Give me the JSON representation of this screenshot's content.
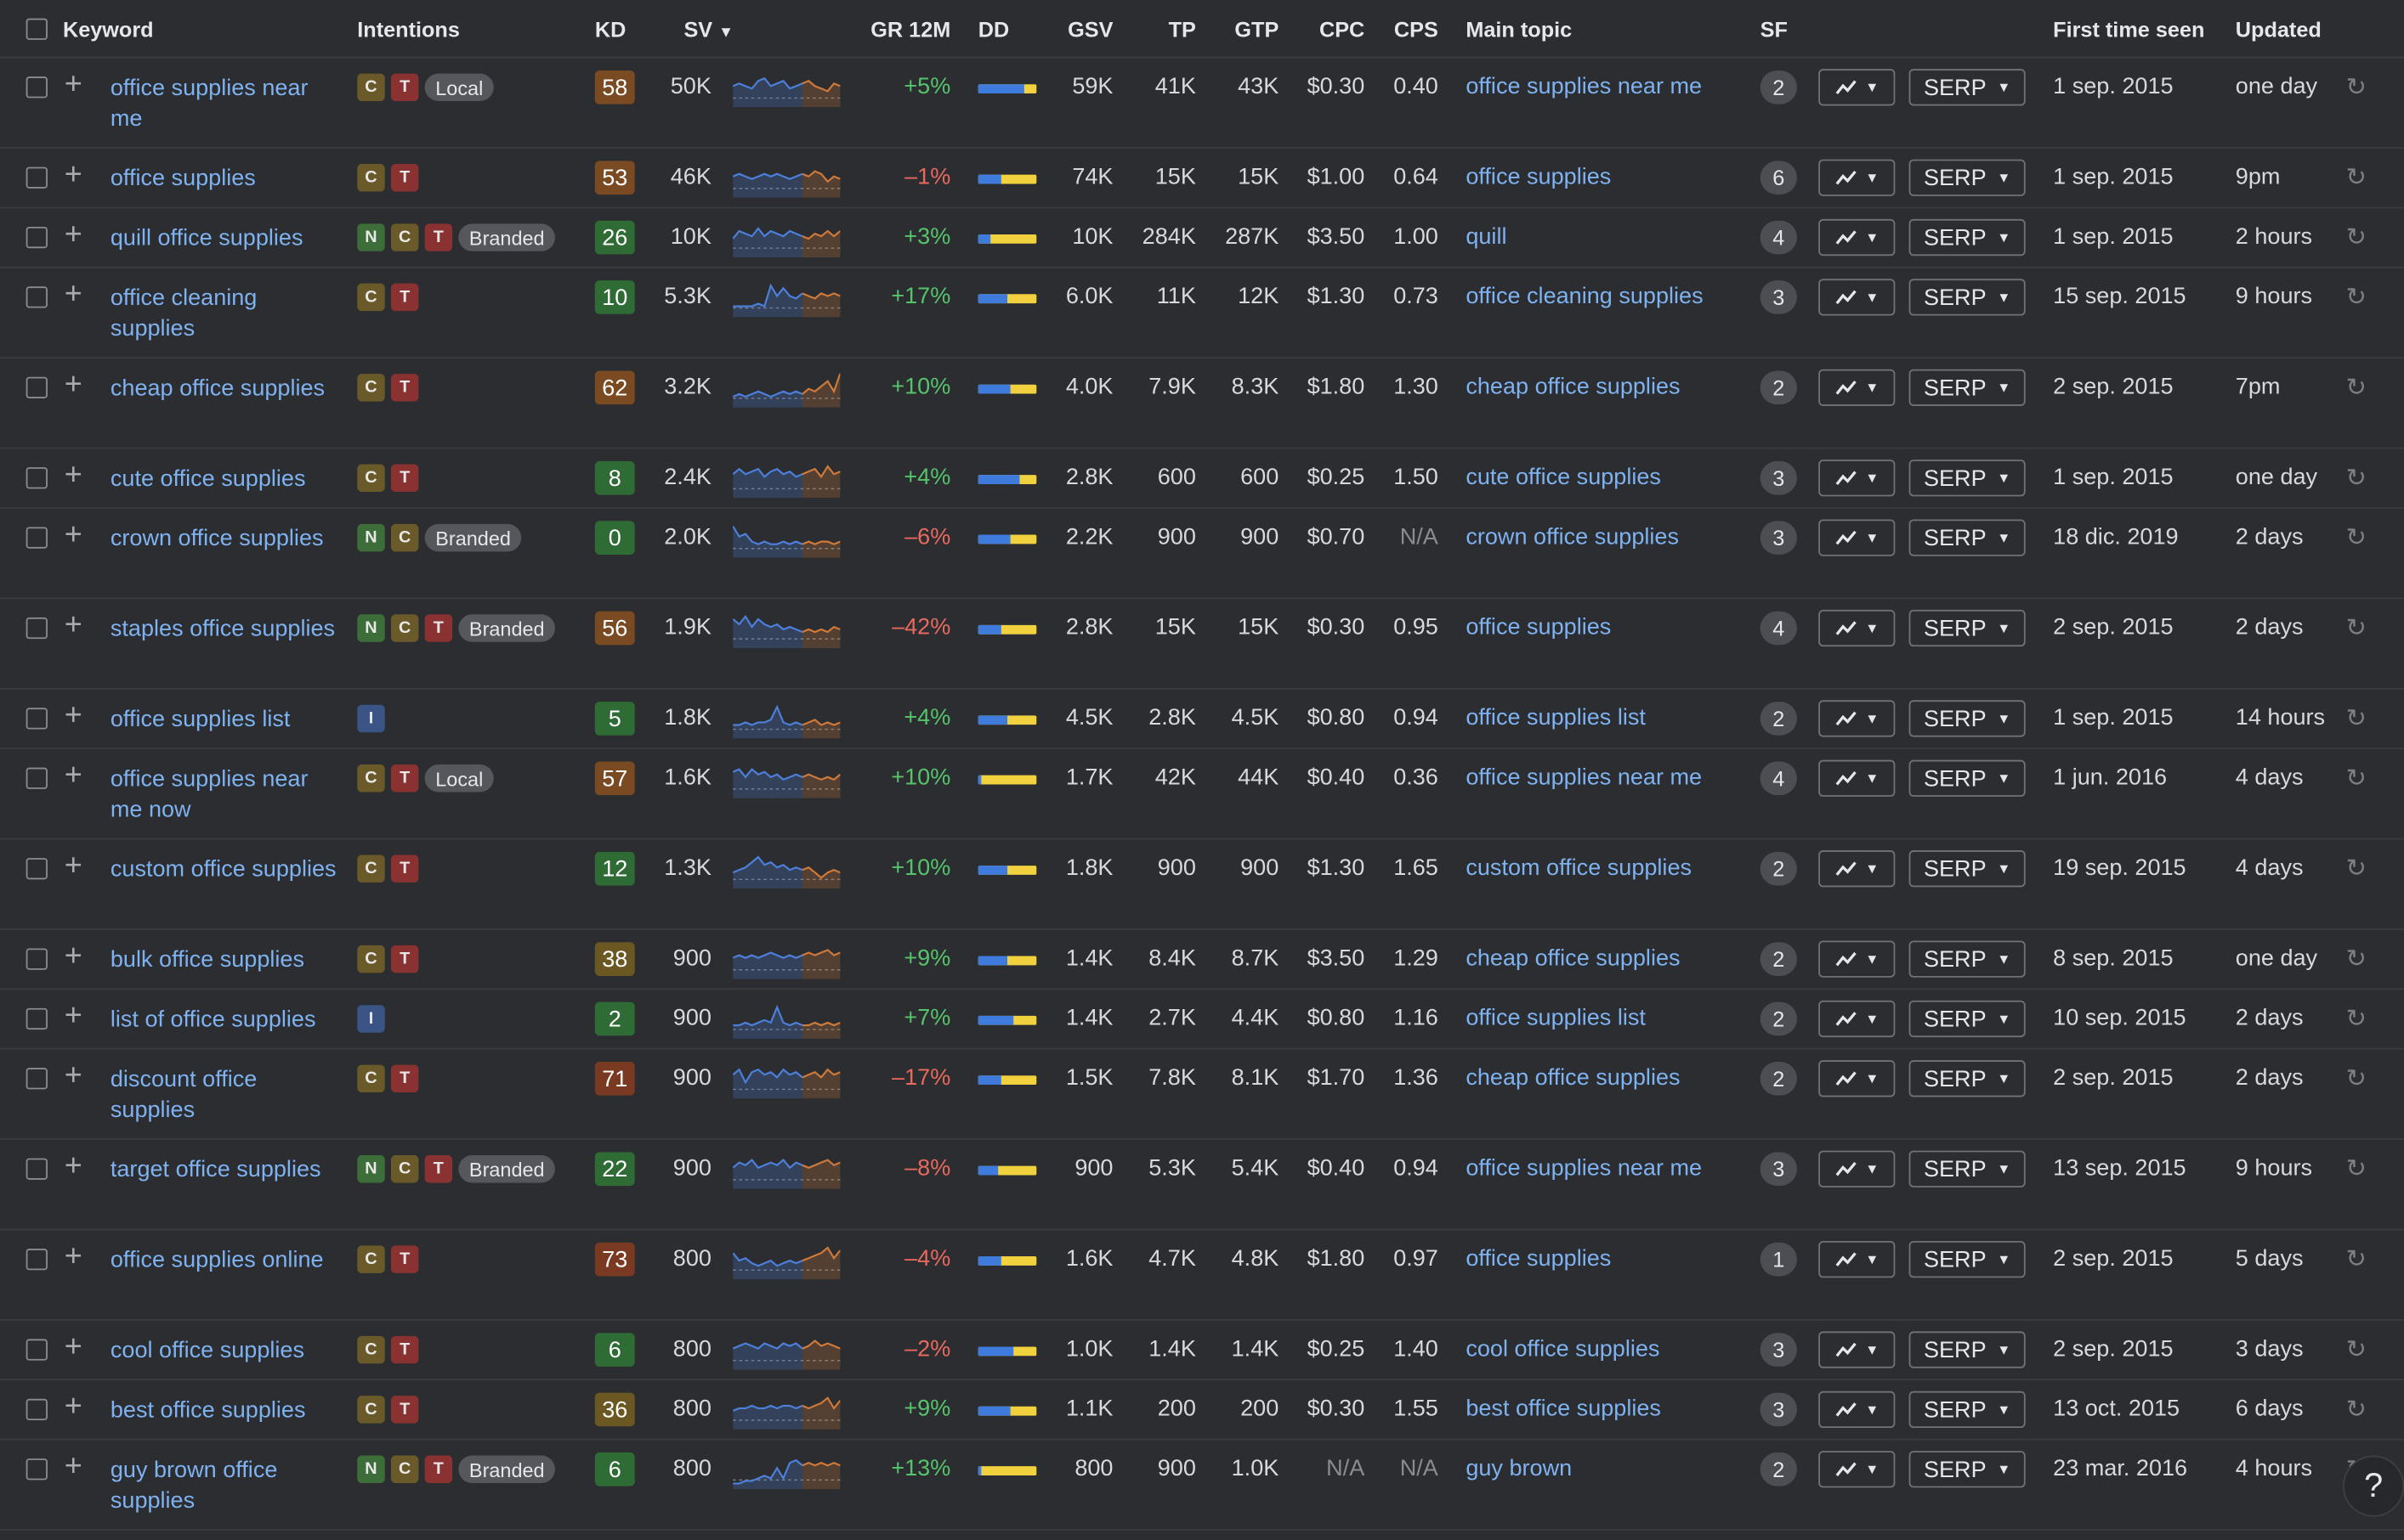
{
  "header": {
    "keyword": "Keyword",
    "intentions": "Intentions",
    "kd": "KD",
    "sv": "SV",
    "gr12m": "GR 12M",
    "dd": "DD",
    "gsv": "GSV",
    "tp": "TP",
    "gtp": "GTP",
    "cpc": "CPC",
    "cps": "CPS",
    "main_topic": "Main topic",
    "sf": "SF",
    "first_seen": "First time seen",
    "updated": "Updated"
  },
  "colors": {
    "kd_easy": "#2f6b34",
    "kd_medium": "#6b5722",
    "kd_hard": "#7a4a22",
    "kd_superhard": "#7a3a22",
    "link": "#7fb2f0"
  },
  "buttons": {
    "serp": "SERP"
  },
  "help": "?",
  "rows": [
    {
      "keyword": "office supplies near me",
      "intents": [
        "C",
        "T"
      ],
      "tag": "Local",
      "kd": "58",
      "sv": "50K",
      "gr": "+5%",
      "dd": 0.8,
      "gsv": "59K",
      "tp": "41K",
      "gtp": "43K",
      "cpc": "$0.30",
      "cps": "0.40",
      "topic": "office supplies near me",
      "sf": "2",
      "first": "1 sep. 2015",
      "updated": "one day"
    },
    {
      "keyword": "office supplies",
      "intents": [
        "C",
        "T"
      ],
      "tag": "",
      "kd": "53",
      "sv": "46K",
      "gr": "–1%",
      "dd": 0.4,
      "gsv": "74K",
      "tp": "15K",
      "gtp": "15K",
      "cpc": "$1.00",
      "cps": "0.64",
      "topic": "office supplies",
      "sf": "6",
      "first": "1 sep. 2015",
      "updated": "9pm"
    },
    {
      "keyword": "quill office supplies",
      "intents": [
        "N",
        "C",
        "T"
      ],
      "tag": "Branded",
      "kd": "26",
      "sv": "10K",
      "gr": "+3%",
      "dd": 0.2,
      "gsv": "10K",
      "tp": "284K",
      "gtp": "287K",
      "cpc": "$3.50",
      "cps": "1.00",
      "topic": "quill",
      "sf": "4",
      "first": "1 sep. 2015",
      "updated": "2 hours"
    },
    {
      "keyword": "office cleaning supplies",
      "intents": [
        "C",
        "T"
      ],
      "tag": "",
      "kd": "10",
      "sv": "5.3K",
      "gr": "+17%",
      "dd": 0.5,
      "gsv": "6.0K",
      "tp": "11K",
      "gtp": "12K",
      "cpc": "$1.30",
      "cps": "0.73",
      "topic": "office cleaning supplies",
      "sf": "3",
      "first": "15 sep. 2015",
      "updated": "9 hours"
    },
    {
      "keyword": "cheap office supplies",
      "intents": [
        "C",
        "T"
      ],
      "tag": "",
      "kd": "62",
      "sv": "3.2K",
      "gr": "+10%",
      "dd": 0.55,
      "gsv": "4.0K",
      "tp": "7.9K",
      "gtp": "8.3K",
      "cpc": "$1.80",
      "cps": "1.30",
      "topic": "cheap office supplies",
      "sf": "2",
      "first": "2 sep. 2015",
      "updated": "7pm"
    },
    {
      "keyword": "cute office supplies",
      "intents": [
        "C",
        "T"
      ],
      "tag": "",
      "kd": "8",
      "sv": "2.4K",
      "gr": "+4%",
      "dd": 0.7,
      "gsv": "2.8K",
      "tp": "600",
      "gtp": "600",
      "cpc": "$0.25",
      "cps": "1.50",
      "topic": "cute office supplies",
      "sf": "3",
      "first": "1 sep. 2015",
      "updated": "one day"
    },
    {
      "keyword": "crown office supplies",
      "intents": [
        "N",
        "C"
      ],
      "tag": "Branded",
      "kd": "0",
      "sv": "2.0K",
      "gr": "–6%",
      "dd": 0.55,
      "gsv": "2.2K",
      "tp": "900",
      "gtp": "900",
      "cpc": "$0.70",
      "cps": "N/A",
      "topic": "crown office supplies",
      "sf": "3",
      "first": "18 dic. 2019",
      "updated": "2 days"
    },
    {
      "keyword": "staples office supplies",
      "intents": [
        "N",
        "C",
        "T"
      ],
      "tag": "Branded",
      "kd": "56",
      "sv": "1.9K",
      "gr": "–42%",
      "dd": 0.4,
      "gsv": "2.8K",
      "tp": "15K",
      "gtp": "15K",
      "cpc": "$0.30",
      "cps": "0.95",
      "topic": "office supplies",
      "sf": "4",
      "first": "2 sep. 2015",
      "updated": "2 days"
    },
    {
      "keyword": "office supplies list",
      "intents": [
        "I"
      ],
      "tag": "",
      "kd": "5",
      "sv": "1.8K",
      "gr": "+4%",
      "dd": 0.5,
      "gsv": "4.5K",
      "tp": "2.8K",
      "gtp": "4.5K",
      "cpc": "$0.80",
      "cps": "0.94",
      "topic": "office supplies list",
      "sf": "2",
      "first": "1 sep. 2015",
      "updated": "14 hours"
    },
    {
      "keyword": "office supplies near me now",
      "intents": [
        "C",
        "T"
      ],
      "tag": "Local",
      "kd": "57",
      "sv": "1.6K",
      "gr": "+10%",
      "dd": 0.05,
      "gsv": "1.7K",
      "tp": "42K",
      "gtp": "44K",
      "cpc": "$0.40",
      "cps": "0.36",
      "topic": "office supplies near me",
      "sf": "4",
      "first": "1 jun. 2016",
      "updated": "4 days"
    },
    {
      "keyword": "custom office supplies",
      "intents": [
        "C",
        "T"
      ],
      "tag": "",
      "kd": "12",
      "sv": "1.3K",
      "gr": "+10%",
      "dd": 0.5,
      "gsv": "1.8K",
      "tp": "900",
      "gtp": "900",
      "cpc": "$1.30",
      "cps": "1.65",
      "topic": "custom office supplies",
      "sf": "2",
      "first": "19 sep. 2015",
      "updated": "4 days"
    },
    {
      "keyword": "bulk office supplies",
      "intents": [
        "C",
        "T"
      ],
      "tag": "",
      "kd": "38",
      "sv": "900",
      "gr": "+9%",
      "dd": 0.5,
      "gsv": "1.4K",
      "tp": "8.4K",
      "gtp": "8.7K",
      "cpc": "$3.50",
      "cps": "1.29",
      "topic": "cheap office supplies",
      "sf": "2",
      "first": "8 sep. 2015",
      "updated": "one day"
    },
    {
      "keyword": "list of office supplies",
      "intents": [
        "I"
      ],
      "tag": "",
      "kd": "2",
      "sv": "900",
      "gr": "+7%",
      "dd": 0.6,
      "gsv": "1.4K",
      "tp": "2.7K",
      "gtp": "4.4K",
      "cpc": "$0.80",
      "cps": "1.16",
      "topic": "office supplies list",
      "sf": "2",
      "first": "10 sep. 2015",
      "updated": "2 days"
    },
    {
      "keyword": "discount office supplies",
      "intents": [
        "C",
        "T"
      ],
      "tag": "",
      "kd": "71",
      "sv": "900",
      "gr": "–17%",
      "dd": 0.4,
      "gsv": "1.5K",
      "tp": "7.8K",
      "gtp": "8.1K",
      "cpc": "$1.70",
      "cps": "1.36",
      "topic": "cheap office supplies",
      "sf": "2",
      "first": "2 sep. 2015",
      "updated": "2 days"
    },
    {
      "keyword": "target office supplies",
      "intents": [
        "N",
        "C",
        "T"
      ],
      "tag": "Branded",
      "kd": "22",
      "sv": "900",
      "gr": "–8%",
      "dd": 0.35,
      "gsv": "900",
      "tp": "5.3K",
      "gtp": "5.4K",
      "cpc": "$0.40",
      "cps": "0.94",
      "topic": "office supplies near me",
      "sf": "3",
      "first": "13 sep. 2015",
      "updated": "9 hours"
    },
    {
      "keyword": "office supplies online",
      "intents": [
        "C",
        "T"
      ],
      "tag": "",
      "kd": "73",
      "sv": "800",
      "gr": "–4%",
      "dd": 0.4,
      "gsv": "1.6K",
      "tp": "4.7K",
      "gtp": "4.8K",
      "cpc": "$1.80",
      "cps": "0.97",
      "topic": "office supplies",
      "sf": "1",
      "first": "2 sep. 2015",
      "updated": "5 days"
    },
    {
      "keyword": "cool office supplies",
      "intents": [
        "C",
        "T"
      ],
      "tag": "",
      "kd": "6",
      "sv": "800",
      "gr": "–2%",
      "dd": 0.6,
      "gsv": "1.0K",
      "tp": "1.4K",
      "gtp": "1.4K",
      "cpc": "$0.25",
      "cps": "1.40",
      "topic": "cool office supplies",
      "sf": "3",
      "first": "2 sep. 2015",
      "updated": "3 days"
    },
    {
      "keyword": "best office supplies",
      "intents": [
        "C",
        "T"
      ],
      "tag": "",
      "kd": "36",
      "sv": "800",
      "gr": "+9%",
      "dd": 0.55,
      "gsv": "1.1K",
      "tp": "200",
      "gtp": "200",
      "cpc": "$0.30",
      "cps": "1.55",
      "topic": "best office supplies",
      "sf": "3",
      "first": "13 oct. 2015",
      "updated": "6 days"
    },
    {
      "keyword": "guy brown office supplies",
      "intents": [
        "N",
        "C",
        "T"
      ],
      "tag": "Branded",
      "kd": "6",
      "sv": "800",
      "gr": "+13%",
      "dd": 0.05,
      "gsv": "800",
      "tp": "900",
      "gtp": "1.0K",
      "cpc": "N/A",
      "cps": "N/A",
      "topic": "guy brown",
      "sf": "2",
      "first": "23 mar. 2016",
      "updated": "4 hours"
    }
  ]
}
